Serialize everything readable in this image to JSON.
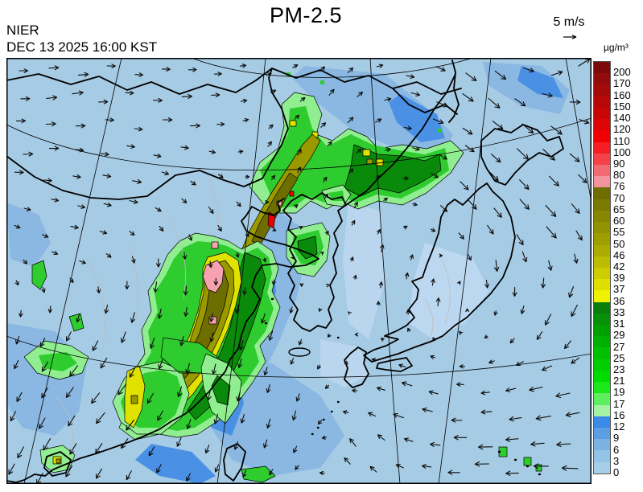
{
  "header": {
    "org": "NIER",
    "datetime": "DEC 13 2025 16:00 KST"
  },
  "title": "PM-2.5",
  "wind_legend": {
    "speed": "5 m/s",
    "symbol": "arrow-right"
  },
  "colorbar": {
    "unit": "µg/m³",
    "levels_top_to_bottom": [
      "200",
      "170",
      "160",
      "150",
      "140",
      "120",
      "110",
      "100",
      "90",
      "80",
      "76",
      "70",
      "65",
      "60",
      "55",
      "50",
      "46",
      "42",
      "39",
      "37",
      "36",
      "33",
      "31",
      "29",
      "27",
      "25",
      "23",
      "21",
      "19",
      "17",
      "16",
      "12",
      "9",
      "6",
      "3",
      "0"
    ],
    "segment_colors_top_to_bottom": [
      "#7c0a0a",
      "#920c0c",
      "#a40a0a",
      "#b60808",
      "#c80606",
      "#dc0404",
      "#f00000",
      "#f51e22",
      "#f34248",
      "#f16b72",
      "#f2949c",
      "#6e6e00",
      "#7a7a00",
      "#868600",
      "#929200",
      "#9e9e00",
      "#acac00",
      "#bcbc00",
      "#cccc00",
      "#dede00",
      "#f0f000",
      "#0a7e0a",
      "#089008",
      "#00a000",
      "#00b000",
      "#00c000",
      "#00ce00",
      "#00dc00",
      "#1ae81a",
      "#5fee5f",
      "#a4f2a4",
      "#3a8ae8",
      "#5c9ee4",
      "#7cb2e2",
      "#93c3e6",
      "#a6cee8"
    ]
  },
  "map_info": {
    "region": "East Asia (China, Korea, Japan)",
    "field": "PM-2.5 surface concentration with wind vectors",
    "ocean_low_color": "#a6cbe4",
    "plume_core_colors": {
      "yellow": "#e2e200",
      "olive": "#9a9a00",
      "dark_olive": "#6e6e00",
      "pink": "#f6a2b0",
      "red": "#ee0000"
    },
    "gridlines": "lat/lon graticule, black thin lines",
    "coastlines": "black"
  }
}
